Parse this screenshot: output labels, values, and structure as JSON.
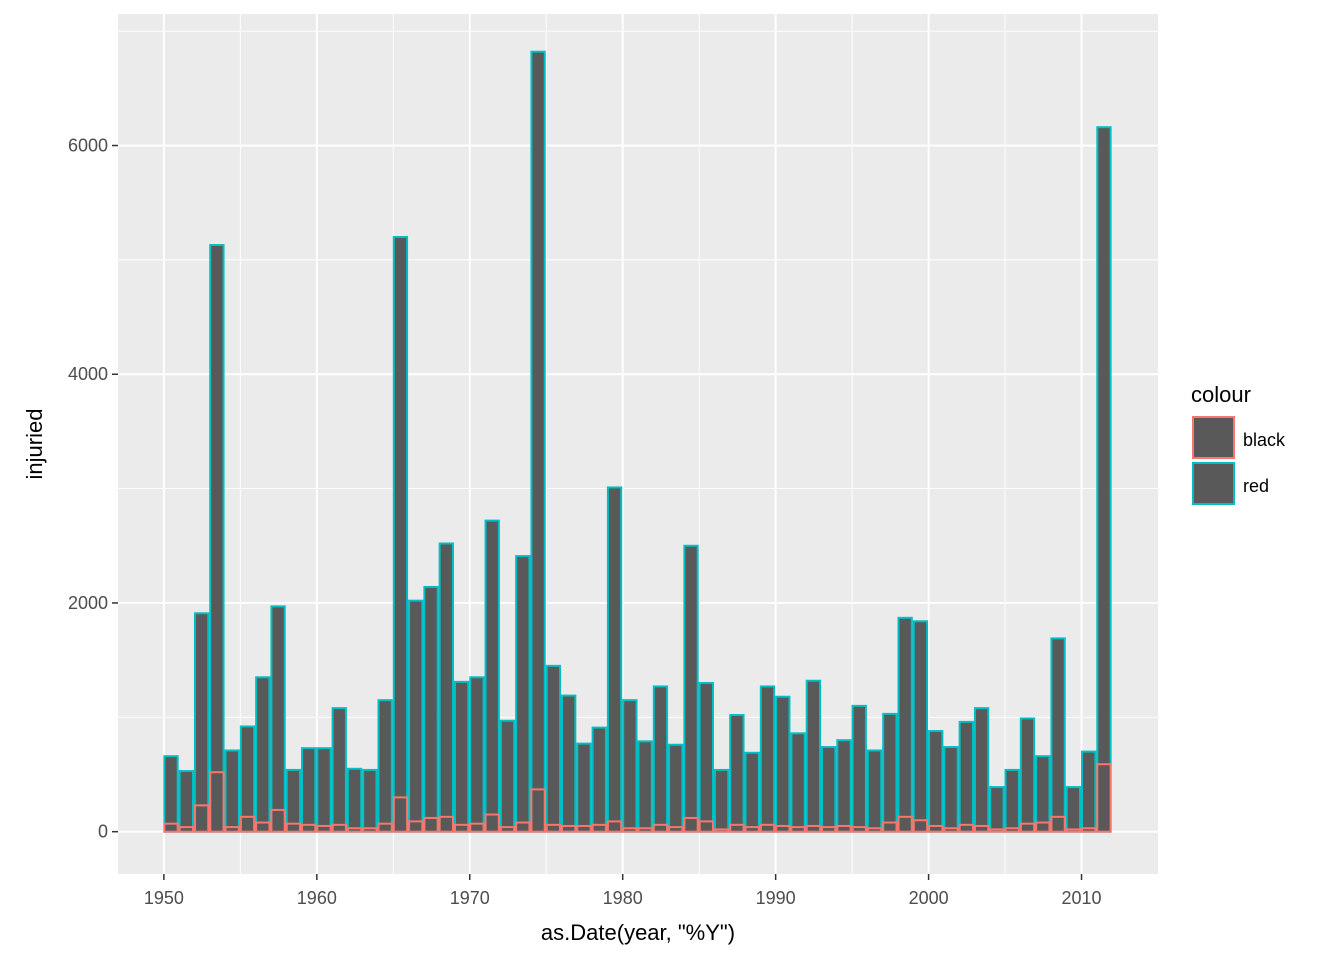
{
  "chart_data": {
    "type": "bar",
    "xlabel": "as.Date(year, \"%Y\")",
    "ylabel": "injuried",
    "x_ticks": [
      "1950",
      "1960",
      "1970",
      "1980",
      "1990",
      "2000",
      "2010"
    ],
    "y_ticks": [
      "0",
      "2000",
      "4000",
      "6000"
    ],
    "ylim": [
      -370,
      7150
    ],
    "xlim": [
      "1947",
      "2015"
    ],
    "grid": true,
    "legend": {
      "title": "colour",
      "position": "right",
      "entries": [
        "black",
        "red"
      ]
    },
    "colors": {
      "panel": "#ebebeb",
      "grid_major": "#ffffff",
      "bar_fill": "#595959",
      "black_outline": "#f8766d",
      "red_outline": "#00bfc4",
      "tick_text": "#4d4d4d",
      "tick_mark": "#333333"
    },
    "years": [
      1950,
      1951,
      1952,
      1953,
      1954,
      1955,
      1956,
      1957,
      1958,
      1959,
      1960,
      1961,
      1962,
      1963,
      1964,
      1965,
      1966,
      1967,
      1968,
      1969,
      1970,
      1971,
      1972,
      1973,
      1974,
      1975,
      1976,
      1977,
      1978,
      1979,
      1980,
      1981,
      1982,
      1983,
      1984,
      1985,
      1986,
      1987,
      1988,
      1989,
      1990,
      1991,
      1992,
      1993,
      1994,
      1995,
      1996,
      1997,
      1998,
      1999,
      2000,
      2001,
      2002,
      2003,
      2004,
      2005,
      2006,
      2007,
      2008,
      2009,
      2010,
      2011
    ],
    "series": [
      {
        "name": "red",
        "values": [
          660,
          530,
          1910,
          5130,
          710,
          920,
          1350,
          1970,
          540,
          730,
          730,
          1080,
          550,
          540,
          1150,
          5200,
          2020,
          2140,
          2520,
          1310,
          1350,
          2720,
          970,
          2410,
          6820,
          1450,
          1190,
          770,
          910,
          3010,
          1150,
          790,
          1270,
          760,
          2500,
          1300,
          540,
          1020,
          690,
          1270,
          1180,
          860,
          1320,
          740,
          800,
          1100,
          710,
          1030,
          1870,
          1840,
          880,
          740,
          960,
          1080,
          390,
          540,
          990,
          660,
          1690,
          390,
          700,
          6160
        ]
      },
      {
        "name": "black",
        "values": [
          70,
          40,
          230,
          520,
          40,
          130,
          80,
          190,
          70,
          60,
          50,
          60,
          30,
          30,
          70,
          300,
          90,
          120,
          130,
          60,
          70,
          150,
          40,
          80,
          370,
          60,
          50,
          50,
          60,
          90,
          30,
          30,
          60,
          40,
          120,
          90,
          20,
          60,
          40,
          60,
          50,
          40,
          50,
          40,
          50,
          40,
          30,
          80,
          130,
          100,
          50,
          30,
          60,
          50,
          20,
          30,
          70,
          80,
          130,
          20,
          30,
          590
        ]
      }
    ]
  }
}
